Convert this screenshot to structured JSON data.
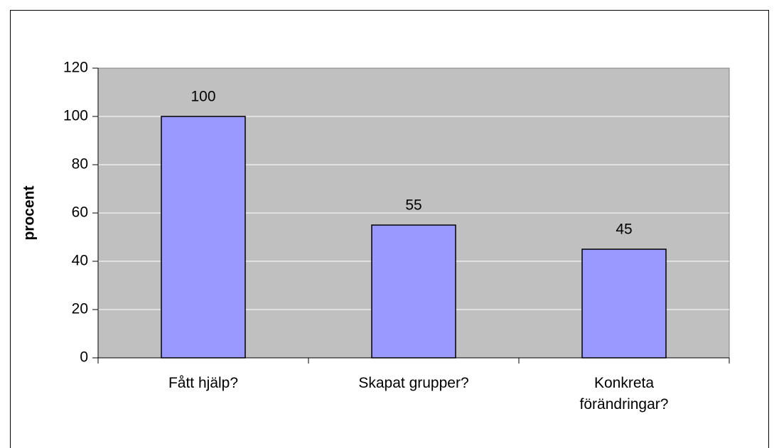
{
  "chart_data": {
    "type": "bar",
    "ylabel": "procent",
    "categories": [
      "Fått hjälp?",
      "Skapat grupper?",
      "Konkreta förändringar?"
    ],
    "values": [
      100,
      55,
      45
    ],
    "color": "#9999ff",
    "background": "#c0c0c0",
    "ylim": [
      0,
      120
    ],
    "yticks": [
      0,
      20,
      40,
      60,
      80,
      100,
      120
    ],
    "grid": true,
    "data_labels": true
  }
}
